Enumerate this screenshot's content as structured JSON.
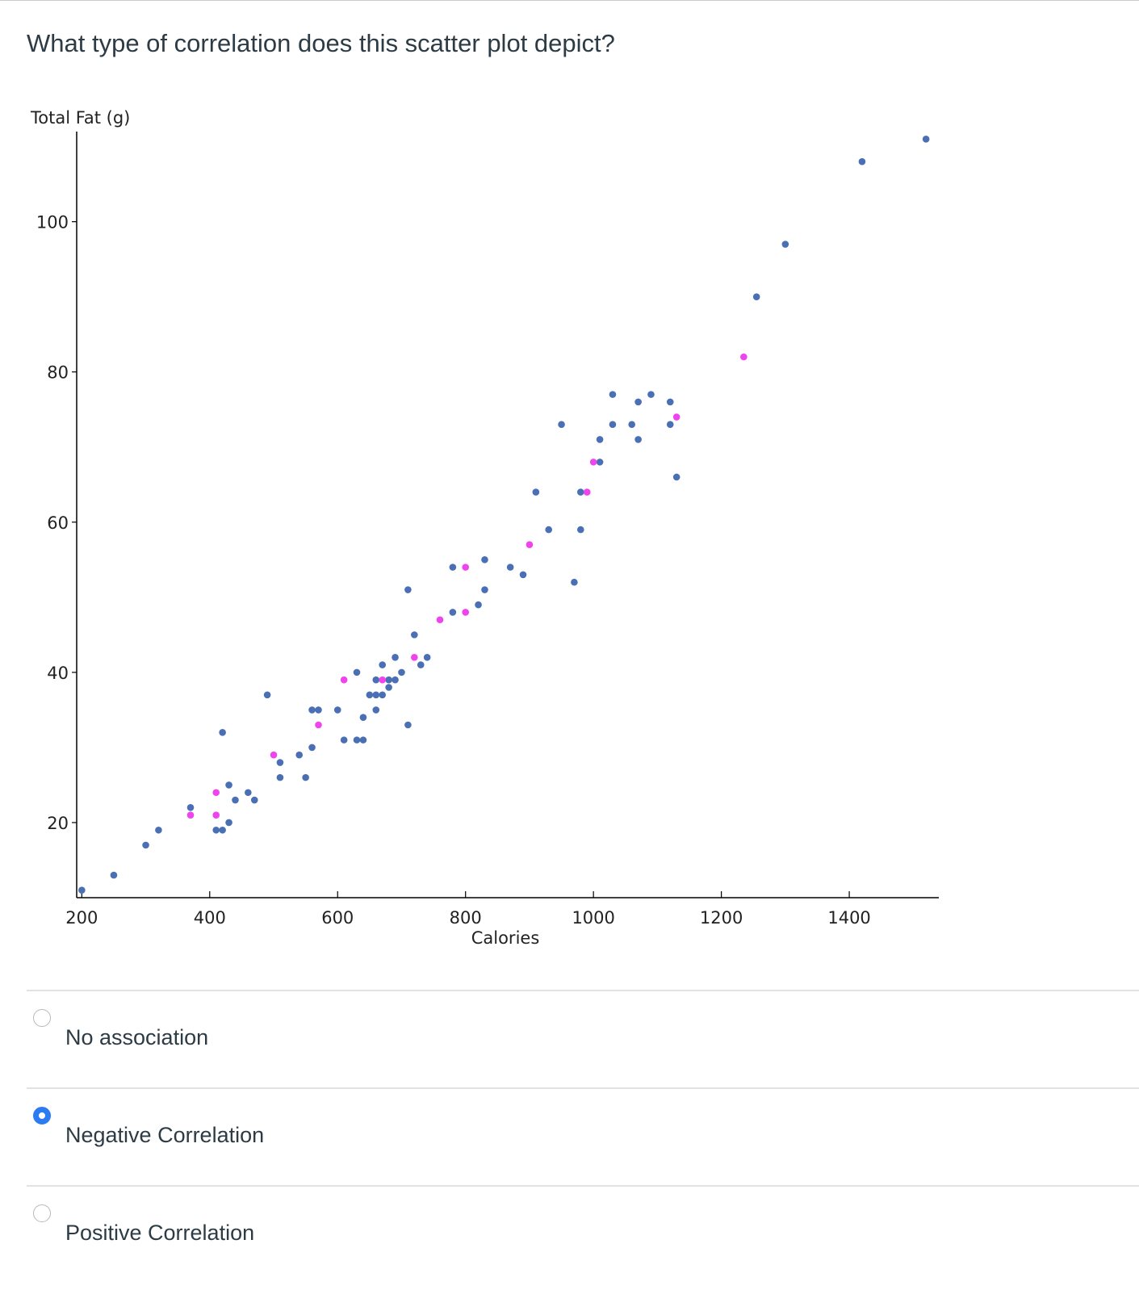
{
  "question": {
    "text": "What type of correlation does this scatter plot depict?"
  },
  "chart_data": {
    "type": "scatter",
    "xlabel": "Calories",
    "ylabel": "Total Fat (g)",
    "xlim": [
      192,
      1540
    ],
    "ylim": [
      10,
      112
    ],
    "xticks": [
      200,
      400,
      600,
      800,
      1000,
      1200,
      1400
    ],
    "yticks": [
      20,
      40,
      60,
      80,
      100
    ],
    "grid": false,
    "legend": "none",
    "colors": [
      "#4a6fb5",
      "#ee44ee"
    ],
    "series": [
      {
        "color": "#4a6fb5",
        "points": [
          [
            200,
            11
          ],
          [
            250,
            13
          ],
          [
            300,
            17
          ],
          [
            320,
            19
          ],
          [
            370,
            22
          ],
          [
            410,
            19
          ],
          [
            420,
            19
          ],
          [
            430,
            20
          ],
          [
            420,
            32
          ],
          [
            430,
            25
          ],
          [
            440,
            23
          ],
          [
            460,
            24
          ],
          [
            470,
            23
          ],
          [
            490,
            37
          ],
          [
            510,
            28
          ],
          [
            510,
            26
          ],
          [
            540,
            29
          ],
          [
            550,
            26
          ],
          [
            560,
            30
          ],
          [
            560,
            35
          ],
          [
            570,
            35
          ],
          [
            600,
            35
          ],
          [
            610,
            31
          ],
          [
            630,
            31
          ],
          [
            640,
            31
          ],
          [
            630,
            40
          ],
          [
            640,
            34
          ],
          [
            650,
            37
          ],
          [
            660,
            37
          ],
          [
            670,
            37
          ],
          [
            660,
            39
          ],
          [
            680,
            39
          ],
          [
            660,
            35
          ],
          [
            670,
            41
          ],
          [
            680,
            38
          ],
          [
            690,
            39
          ],
          [
            690,
            42
          ],
          [
            700,
            40
          ],
          [
            710,
            33
          ],
          [
            710,
            51
          ],
          [
            720,
            45
          ],
          [
            730,
            41
          ],
          [
            740,
            42
          ],
          [
            780,
            48
          ],
          [
            780,
            54
          ],
          [
            820,
            49
          ],
          [
            830,
            51
          ],
          [
            830,
            55
          ],
          [
            870,
            54
          ],
          [
            890,
            53
          ],
          [
            910,
            64
          ],
          [
            930,
            59
          ],
          [
            950,
            73
          ],
          [
            970,
            52
          ],
          [
            980,
            64
          ],
          [
            980,
            59
          ],
          [
            1010,
            71
          ],
          [
            1010,
            68
          ],
          [
            1030,
            77
          ],
          [
            1030,
            73
          ],
          [
            1060,
            73
          ],
          [
            1070,
            76
          ],
          [
            1070,
            71
          ],
          [
            1090,
            77
          ],
          [
            1120,
            76
          ],
          [
            1120,
            73
          ],
          [
            1130,
            66
          ],
          [
            1255,
            90
          ],
          [
            1300,
            97
          ],
          [
            1420,
            108
          ],
          [
            1520,
            111
          ]
        ]
      },
      {
        "color": "#ee44ee",
        "points": [
          [
            370,
            21
          ],
          [
            410,
            24
          ],
          [
            410,
            21
          ],
          [
            500,
            29
          ],
          [
            570,
            33
          ],
          [
            610,
            39
          ],
          [
            670,
            39
          ],
          [
            720,
            42
          ],
          [
            760,
            47
          ],
          [
            800,
            54
          ],
          [
            800,
            48
          ],
          [
            900,
            57
          ],
          [
            990,
            64
          ],
          [
            1000,
            68
          ],
          [
            1130,
            74
          ],
          [
            1235,
            82
          ]
        ]
      }
    ]
  },
  "answers": [
    {
      "label": "No association",
      "selected": false
    },
    {
      "label": "Negative Correlation",
      "selected": true
    },
    {
      "label": "Positive Correlation",
      "selected": false
    }
  ]
}
